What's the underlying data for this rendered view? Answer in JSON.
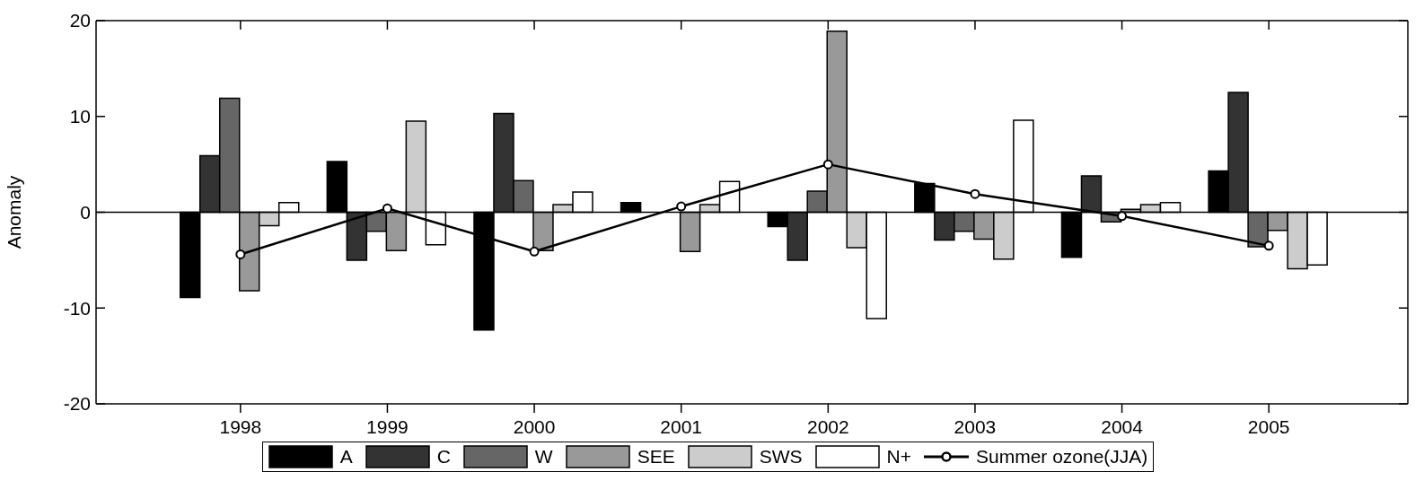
{
  "chart_data": {
    "type": "bar",
    "ylabel": "Anomaly",
    "categories": [
      "1998",
      "1999",
      "2000",
      "2001",
      "2002",
      "2003",
      "2004",
      "2005"
    ],
    "series": [
      {
        "name": "A",
        "color": "#000000",
        "values": [
          -8.9,
          5.3,
          -12.3,
          1.0,
          -1.5,
          3.0,
          -4.7,
          4.3
        ]
      },
      {
        "name": "C",
        "color": "#333333",
        "values": [
          5.9,
          -5.0,
          10.3,
          0,
          -5.0,
          -2.9,
          3.8,
          12.5
        ]
      },
      {
        "name": "W",
        "color": "#666666",
        "values": [
          11.9,
          -2.0,
          3.3,
          0,
          2.2,
          -2.0,
          -1.0,
          -3.6
        ]
      },
      {
        "name": "SEE",
        "color": "#999999",
        "values": [
          -8.2,
          -4.0,
          -4.0,
          -4.1,
          18.9,
          -2.8,
          0.3,
          -1.9
        ]
      },
      {
        "name": "SWS",
        "color": "#cccccc",
        "values": [
          -1.4,
          9.5,
          0.8,
          0.8,
          -3.7,
          -4.9,
          0.8,
          -5.9
        ]
      },
      {
        "name": "N+",
        "color": "#ffffff",
        "values": [
          1.0,
          -3.4,
          2.1,
          3.2,
          -11.1,
          9.6,
          1.0,
          -5.5
        ]
      },
      {
        "name": "Summer ozone(JJA)",
        "type": "line",
        "color": "#000000",
        "marker": "circle",
        "values": [
          -4.4,
          0.4,
          -4.1,
          0.6,
          5.0,
          1.9,
          -0.4,
          -3.5
        ]
      }
    ],
    "ylim": [
      -20,
      20
    ],
    "yticks": [
      -20,
      -10,
      0,
      10,
      20
    ],
    "ref_lines": [
      {
        "axis": "y",
        "value": 0
      }
    ],
    "legend": "bottom"
  }
}
